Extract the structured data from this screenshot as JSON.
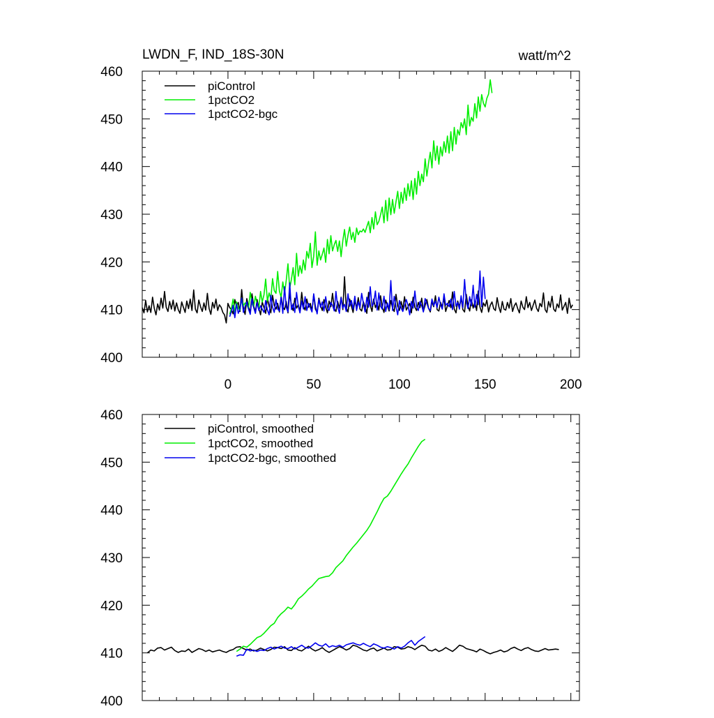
{
  "colors": {
    "piControl": "#000000",
    "1pctCO2": "#00ee00",
    "1pctCO2-bgc": "#0000ee",
    "axes": "#000000",
    "background": "#ffffff"
  },
  "header": {
    "left_title": "LWDN_F, IND_18S-30N",
    "right_title": "watt/m^2"
  },
  "chart_data": [
    {
      "type": "line",
      "title": "LWDN_F, IND_18S-30N",
      "units": "watt/m^2",
      "xlim": [
        -50,
        205
      ],
      "ylim": [
        400,
        460
      ],
      "xticks": [
        0,
        50,
        100,
        150,
        200
      ],
      "yticks": [
        400,
        410,
        420,
        430,
        440,
        450,
        460
      ],
      "xtick_labels": [
        "0",
        "50",
        "100",
        "150",
        "200"
      ],
      "ytick_labels": [
        "400",
        "410",
        "420",
        "430",
        "440",
        "450",
        "460"
      ],
      "legend": [
        "piControl",
        "1pctCO2",
        "1pctCO2-bgc"
      ],
      "legend_position": "top-left",
      "series": [
        {
          "name": "piControl",
          "color": "#000000",
          "x_start": -50,
          "x_step": 1,
          "values": [
            410.4,
            409.3,
            411.9,
            409.5,
            410.8,
            409.4,
            412.6,
            410.3,
            408.9,
            411.2,
            409.9,
            412.4,
            410.3,
            413.8,
            410.5,
            409.6,
            411.7,
            410.1,
            412.0,
            409.7,
            411.4,
            410.0,
            409.2,
            411.6,
            410.5,
            409.4,
            411.8,
            410.2,
            412.2,
            409.8,
            414.1,
            410.1,
            409.3,
            412.0,
            410.6,
            409.6,
            411.4,
            409.9,
            413.4,
            410.2,
            409.0,
            411.5,
            410.3,
            412.2,
            409.8,
            411.0,
            410.5,
            409.4,
            408.9,
            407.2,
            411.3,
            410.4,
            410.0,
            409.1,
            412.1,
            410.7,
            411.5,
            409.6,
            414.2,
            410.3,
            409.0,
            412.3,
            410.6,
            409.4,
            413.3,
            410.8,
            409.5,
            412.1,
            410.3,
            408.9,
            411.6,
            410.4,
            409.2,
            412.4,
            410.7,
            409.3,
            413.0,
            410.9,
            410.1,
            411.3,
            409.5,
            412.8,
            410.6,
            410.0,
            411.7,
            409.3,
            413.5,
            410.9,
            409.8,
            412.4,
            410.3,
            411.0,
            409.6,
            413.6,
            410.8,
            409.9,
            412.2,
            410.5,
            411.3,
            409.7,
            413.1,
            410.1,
            409.4,
            412.4,
            410.9,
            409.8,
            412.1,
            410.5,
            409.3,
            411.8,
            410.6,
            413.4,
            410.2,
            409.6,
            411.7,
            410.3,
            412.6,
            410.0,
            416.9,
            410.4,
            409.5,
            412.2,
            410.7,
            409.4,
            411.9,
            410.3,
            412.5,
            410.1,
            409.7,
            411.6,
            410.6,
            409.2,
            413.6,
            410.9,
            409.6,
            412.2,
            410.4,
            411.4,
            409.9,
            412.9,
            410.5,
            409.4,
            412.0,
            410.8,
            409.7,
            411.9,
            410.3,
            409.6,
            413.2,
            410.7,
            409.8,
            411.7,
            410.1,
            412.7,
            409.9,
            410.6,
            411.3,
            409.3,
            412.6,
            410.5,
            409.8,
            411.5,
            410.4,
            412.4,
            409.6,
            410.9,
            412.1,
            410.3,
            409.5,
            411.7,
            410.6,
            412.9,
            410.0,
            409.7,
            411.5,
            410.5,
            412.5,
            409.6,
            410.8,
            411.9,
            410.4,
            413.7,
            410.1,
            409.3,
            411.8,
            410.6,
            412.4,
            410.0,
            409.5,
            413.2,
            410.8,
            409.7,
            412.1,
            410.3,
            411.6,
            409.8,
            413.9,
            410.5,
            409.4,
            411.4,
            410.7,
            412.0,
            409.5,
            410.9,
            411.6,
            410.2,
            409.8,
            412.5,
            410.6,
            409.4,
            411.7,
            410.1,
            409.9,
            411.5,
            410.3,
            412.3,
            409.6,
            410.8,
            411.4,
            410.2,
            409.3,
            411.8,
            410.5,
            410.0,
            412.7,
            410.4,
            411.5,
            409.8,
            410.9,
            412.0,
            410.3,
            409.6,
            411.3,
            410.6,
            413.5,
            410.0,
            409.4,
            411.7,
            410.5,
            412.8,
            410.1,
            409.6,
            411.2,
            410.4,
            413.1,
            409.9,
            410.7,
            411.5,
            409.2,
            412.4,
            410.3,
            411.0
          ]
        },
        {
          "name": "1pctCO2",
          "color": "#00ee00",
          "x_start": 1,
          "x_step": 1,
          "values": [
            409.0,
            410.3,
            412.2,
            409.4,
            411.6,
            410.2,
            409.9,
            412.4,
            410.8,
            411.4,
            411.0,
            410.2,
            413.6,
            411.3,
            410.5,
            412.8,
            411.1,
            410.4,
            413.8,
            411.6,
            413.1,
            416.4,
            411.8,
            413.5,
            412.2,
            416.5,
            414.0,
            413.4,
            418.0,
            413.9,
            412.6,
            415.8,
            413.4,
            416.1,
            419.6,
            414.5,
            416.3,
            418.8,
            415.2,
            421.8,
            417.0,
            419.2,
            417.6,
            420.4,
            418.3,
            422.2,
            420.8,
            423.9,
            418.8,
            421.2,
            426.3,
            419.3,
            422.3,
            420.4,
            421.6,
            422.9,
            419.9,
            424.7,
            421.7,
            425.5,
            422.3,
            423.6,
            424.5,
            422.2,
            424.4,
            421.1,
            424.5,
            426.8,
            423.3,
            425.6,
            427.3,
            424.7,
            426.2,
            424.1,
            427.1,
            425.7,
            426.5,
            426.3,
            426.9,
            426.2,
            427.4,
            428.5,
            426.1,
            429.3,
            426.9,
            430.5,
            427.8,
            428.5,
            429.9,
            431.5,
            428.2,
            432.9,
            428.6,
            433.4,
            429.9,
            433.1,
            430.2,
            432.6,
            434.8,
            431.2,
            434.6,
            432.3,
            435.5,
            432.9,
            436.4,
            433.8,
            437.0,
            433.1,
            437.5,
            434.2,
            439.0,
            436.0,
            438.4,
            436.8,
            441.6,
            438.0,
            440.7,
            443.0,
            439.7,
            445.4,
            441.3,
            444.3,
            440.5,
            444.1,
            442.2,
            445.2,
            443.0,
            446.4,
            442.8,
            447.3,
            443.3,
            448.2,
            444.7,
            447.7,
            446.6,
            449.2,
            448.1,
            450.0,
            446.7,
            452.9,
            448.5,
            450.3,
            449.5,
            453.2,
            450.2,
            454.6,
            451.6,
            455.1,
            453.3,
            452.5,
            454.3,
            455.2,
            458.2,
            455.4
          ]
        },
        {
          "name": "1pctCO2-bgc",
          "color": "#0000ee",
          "x_start": 1,
          "x_step": 1,
          "values": [
            408.5,
            409.6,
            410.9,
            408.3,
            411.2,
            409.2,
            410.2,
            412.4,
            409.4,
            410.7,
            411.6,
            410.1,
            409.0,
            412.3,
            410.4,
            409.2,
            411.5,
            409.8,
            410.8,
            410.1,
            409.4,
            411.9,
            409.9,
            408.9,
            413.0,
            410.5,
            409.4,
            412.1,
            410.1,
            409.7,
            412.6,
            409.2,
            414.8,
            410.5,
            409.5,
            415.6,
            410.0,
            411.2,
            409.4,
            413.6,
            410.7,
            409.3,
            411.8,
            410.1,
            412.7,
            409.8,
            411.3,
            410.4,
            409.5,
            413.3,
            410.8,
            409.1,
            412.1,
            410.5,
            411.6,
            409.7,
            412.7,
            410.3,
            409.8,
            411.5,
            410.9,
            409.7,
            413.8,
            410.6,
            409.2,
            412.5,
            410.3,
            411.1,
            409.6,
            413.3,
            410.7,
            411.9,
            410.1,
            412.8,
            409.8,
            411.6,
            410.4,
            413.4,
            411.3,
            409.5,
            412.6,
            410.5,
            414.8,
            410.7,
            411.3,
            413.9,
            409.9,
            413.5,
            410.7,
            410.1,
            412.8,
            409.6,
            411.4,
            410.0,
            416.1,
            409.8,
            412.8,
            410.6,
            408.9,
            411.9,
            410.3,
            409.6,
            410.8,
            412.1,
            410.9,
            408.9,
            411.7,
            410.3,
            413.9,
            410.6,
            409.8,
            411.7,
            410.8,
            409.5,
            412.3,
            411.3,
            410.2,
            409.8,
            412.2,
            410.8,
            411.8,
            410.4,
            412.6,
            411.0,
            410.1,
            413.3,
            410.9,
            411.3,
            410.6,
            412.2,
            410.0,
            413.8,
            410.7,
            411.5,
            410.1,
            412.9,
            410.4,
            416.3,
            411.6,
            410.2,
            412.7,
            410.8,
            415.1,
            410.5,
            413.2,
            411.0,
            418.1,
            410.6,
            416.8,
            412.2
          ]
        }
      ]
    },
    {
      "type": "line",
      "title": "",
      "xlim": [
        -50,
        205
      ],
      "ylim": [
        400,
        460
      ],
      "xticks": [
        0,
        50,
        100,
        150,
        200
      ],
      "yticks": [
        400,
        410,
        420,
        430,
        440,
        450,
        460
      ],
      "ytick_labels": [
        "400",
        "410",
        "420",
        "430",
        "440",
        "450",
        "460"
      ],
      "legend": [
        "piControl, smoothed",
        "1pctCO2, smoothed",
        "1pctCO2-bgc, smoothed"
      ],
      "legend_position": "top-left",
      "series": [
        {
          "name": "piControl, smoothed",
          "color": "#000000",
          "x_start": -47,
          "x_step": 2,
          "values": [
            410.0,
            410.6,
            410.4,
            411.0,
            411.1,
            410.6,
            410.9,
            411.2,
            410.5,
            410.1,
            410.4,
            410.3,
            410.8,
            410.1,
            410.5,
            410.9,
            410.7,
            410.3,
            410.6,
            410.2,
            410.4,
            410.6,
            410.3,
            410.1,
            410.5,
            410.7,
            411.2,
            411.3,
            410.9,
            410.6,
            410.8,
            410.4,
            410.6,
            411.0,
            410.7,
            410.4,
            410.7,
            411.2,
            411.1,
            410.9,
            411.3,
            410.6,
            410.5,
            411.1,
            410.6,
            410.4,
            410.9,
            411.4,
            410.8,
            410.4,
            410.7,
            411.1,
            410.5,
            410.1,
            410.5,
            410.9,
            411.3,
            411.0,
            410.6,
            410.9,
            411.6,
            411.4,
            411.0,
            410.6,
            410.4,
            410.8,
            411.0,
            410.4,
            410.7,
            411.0,
            410.6,
            410.7,
            411.3,
            411.2,
            410.8,
            410.9,
            411.3,
            411.1,
            410.7,
            411.2,
            411.6,
            411.4,
            410.6,
            410.4,
            410.8,
            410.3,
            410.6,
            411.1,
            410.7,
            410.3,
            410.9,
            411.6,
            411.4,
            410.9,
            410.7,
            410.5,
            410.2,
            410.8,
            410.5,
            410.1,
            409.8,
            410.1,
            410.3,
            410.6,
            410.2,
            410.4,
            410.9,
            411.2,
            410.8,
            410.5,
            410.9,
            411.1,
            410.7,
            410.4,
            410.3,
            410.6,
            410.9,
            410.6,
            410.7,
            410.8,
            410.7
          ]
        },
        {
          "name": "1pctCO2, smoothed",
          "color": "#00ee00",
          "x_start": 5,
          "x_step": 2,
          "values": [
            410.3,
            410.8,
            411.4,
            411.2,
            411.8,
            412.5,
            413.2,
            413.5,
            414.1,
            414.9,
            415.7,
            416.2,
            417.4,
            418.2,
            418.8,
            419.6,
            419.2,
            420.1,
            421.3,
            421.9,
            422.6,
            423.4,
            424.0,
            424.8,
            425.6,
            425.8,
            426.0,
            426.1,
            426.8,
            427.9,
            428.6,
            429.3,
            430.4,
            431.3,
            432.2,
            433.0,
            433.9,
            434.8,
            435.7,
            436.8,
            438.2,
            439.6,
            441.1,
            442.4,
            442.9,
            443.9,
            445.1,
            446.3,
            447.5,
            448.6,
            449.6,
            450.9,
            452.1,
            453.3,
            454.3,
            454.8
          ]
        },
        {
          "name": "1pctCO2-bgc, smoothed",
          "color": "#0000ee",
          "x_start": 5,
          "x_step": 2,
          "values": [
            409.3,
            409.6,
            409.5,
            410.8,
            410.4,
            410.6,
            410.3,
            410.6,
            410.5,
            410.9,
            411.2,
            410.8,
            411.1,
            411.4,
            411.0,
            410.9,
            411.3,
            410.8,
            411.2,
            411.6,
            411.1,
            411.0,
            411.5,
            412.1,
            411.6,
            411.4,
            411.9,
            411.2,
            411.5,
            411.3,
            411.6,
            411.2,
            411.7,
            411.9,
            412.1,
            411.8,
            411.6,
            412.0,
            411.6,
            411.3,
            411.9,
            411.6,
            411.2,
            411.0,
            411.3,
            411.1,
            410.8,
            411.3,
            411.0,
            411.4,
            412.1,
            412.6,
            411.6,
            412.4,
            412.9,
            413.4
          ]
        }
      ]
    }
  ]
}
